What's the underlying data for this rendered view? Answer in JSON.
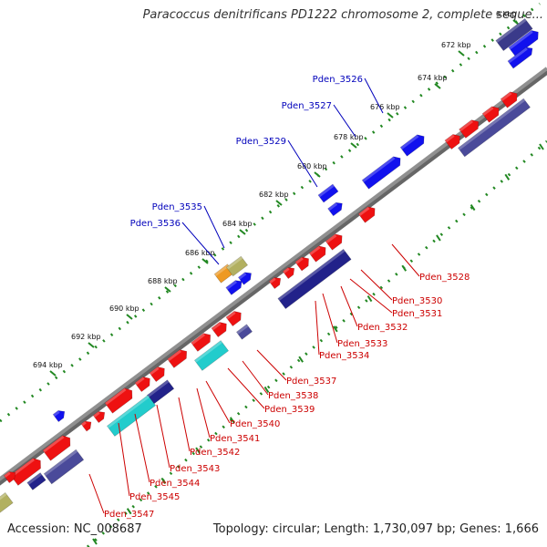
{
  "title": "Paracoccus denitrificans PD1222 chromosome 2, complete seque...",
  "footer": {
    "accession": "Accession: NC_008687",
    "topology": "Topology: circular; Length: 1,730,097 bp; Genes: 1,666"
  },
  "colors": {
    "forward_cds": "#ee1111",
    "reverse_cds": "#1111ee",
    "forward_blast": "#4a4a9a",
    "reverse_blast": "#22228a",
    "cyan_feature": "#22cccc",
    "orange_feature": "#ee9922",
    "olive_feature": "#b2b060",
    "backbone": "#909090",
    "tick": "#228822",
    "forward_label": "#cc0000",
    "reverse_label": "#0000bb"
  },
  "scale_ticks": [
    "0 kbp",
    "672 kbp",
    "674 kbp",
    "676 kbp",
    "678 kbp",
    "680 kbp",
    "682 kbp",
    "684 kbp",
    "686 kbp",
    "688 kbp",
    "690 kbp",
    "692 kbp",
    "694 kbp"
  ],
  "reverse_gene_labels": [
    "Pden_3526",
    "Pden_3527",
    "Pden_3529",
    "Pden_3535",
    "Pden_3536"
  ],
  "forward_gene_labels": [
    "Pden_3528",
    "Pden_3530",
    "Pden_3531",
    "Pden_3532",
    "Pden_3533",
    "Pden_3534",
    "Pden_3537",
    "Pden_3538",
    "Pden_3539",
    "Pden_3540",
    "Pden_3541",
    "Pden_3542",
    "Pden_3543",
    "Pden_3544",
    "Pden_3545",
    "Pden_3547"
  ]
}
